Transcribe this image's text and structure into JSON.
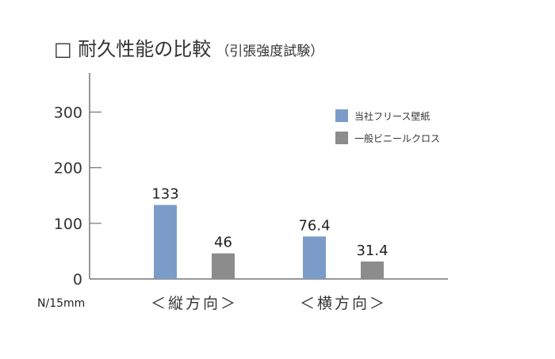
{
  "chart_data": {
    "type": "bar",
    "title": "□ 耐久性能の比較",
    "subtitle": "（引張強度試験）",
    "ylabel": "N/15mm",
    "xlabel": "",
    "categories": [
      "＜縦方向＞",
      "＜横方向＞"
    ],
    "series": [
      {
        "name": "当社フリース壁紙",
        "values": [
          133,
          76.4
        ],
        "color": "#7b9cc8"
      },
      {
        "name": "一般ビニールクロス",
        "values": [
          46,
          31.4
        ],
        "color": "#8c8c8c"
      }
    ],
    "data_labels": [
      [
        "133",
        "76.4"
      ],
      [
        "46",
        "31.4"
      ]
    ],
    "yticks": [
      0,
      100,
      200,
      300
    ],
    "ylim": [
      0,
      370
    ],
    "grid": false,
    "legend_position": "top-right"
  }
}
